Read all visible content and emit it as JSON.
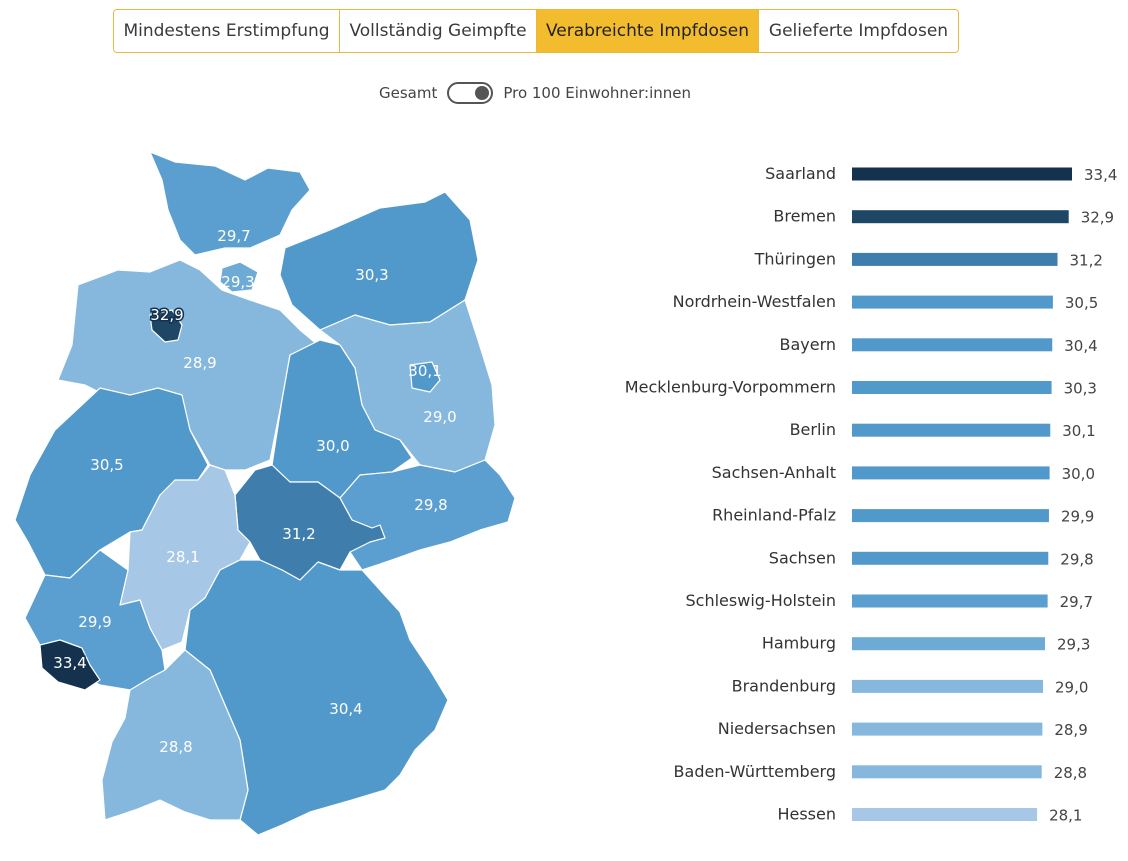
{
  "tabs": [
    {
      "label": "Mindestens Erstimpfung",
      "active": false
    },
    {
      "label": "Vollständig Geimpfte",
      "active": false
    },
    {
      "label": "Verabreichte Impfdosen",
      "active": true
    },
    {
      "label": "Gelieferte Impfdosen",
      "active": false
    }
  ],
  "toggle": {
    "left_label": "Gesamt",
    "right_label": "Pro 100 Einwohner:innen",
    "state": "right"
  },
  "chart_data": {
    "type": "bar",
    "orientation": "horizontal",
    "metric": "Verabreichte Impfdosen pro 100 Einwohner:innen",
    "categories": [
      "Saarland",
      "Bremen",
      "Thüringen",
      "Nordrhein-Westfalen",
      "Bayern",
      "Mecklenburg-Vorpommern",
      "Berlin",
      "Sachsen-Anhalt",
      "Rheinland-Pfalz",
      "Sachsen",
      "Schleswig-Holstein",
      "Hamburg",
      "Brandenburg",
      "Niedersachsen",
      "Baden-Württemberg",
      "Hessen"
    ],
    "values": [
      33.4,
      32.9,
      31.2,
      30.5,
      30.4,
      30.3,
      30.1,
      30.0,
      29.9,
      29.8,
      29.7,
      29.3,
      29.0,
      28.9,
      28.8,
      28.1
    ],
    "value_labels": [
      "33,4",
      "32,9",
      "31,2",
      "30,5",
      "30,4",
      "30,3",
      "30,1",
      "30,0",
      "29,9",
      "29,8",
      "29,7",
      "29,3",
      "29,0",
      "28,9",
      "28,8",
      "28,1"
    ],
    "colors": [
      "#14314d",
      "#1e4766",
      "#3f7eac",
      "#5199cb",
      "#5199cb",
      "#5199cb",
      "#5199cb",
      "#5199cb",
      "#5199cb",
      "#5199cb",
      "#5a9fd0",
      "#6eaad6",
      "#86b8de",
      "#86b8de",
      "#86b8de",
      "#a6c8e6"
    ],
    "map_labels": [
      {
        "region": "Schleswig-Holstein",
        "label": "29,7"
      },
      {
        "region": "Hamburg",
        "label": "29,3"
      },
      {
        "region": "Mecklenburg-Vorpommern",
        "label": "30,3"
      },
      {
        "region": "Bremen",
        "label": "32,9"
      },
      {
        "region": "Niedersachsen",
        "label": "28,9"
      },
      {
        "region": "Berlin",
        "label": "30,1"
      },
      {
        "region": "Brandenburg",
        "label": "29,0"
      },
      {
        "region": "Sachsen-Anhalt",
        "label": "30,0"
      },
      {
        "region": "Nordrhein-Westfalen",
        "label": "30,5"
      },
      {
        "region": "Sachsen",
        "label": "29,8"
      },
      {
        "region": "Thüringen",
        "label": "31,2"
      },
      {
        "region": "Hessen",
        "label": "28,1"
      },
      {
        "region": "Rheinland-Pfalz",
        "label": "29,9"
      },
      {
        "region": "Saarland",
        "label": "33,4"
      },
      {
        "region": "Bayern",
        "label": "30,4"
      },
      {
        "region": "Baden-Württemberg",
        "label": "28,8"
      }
    ]
  }
}
